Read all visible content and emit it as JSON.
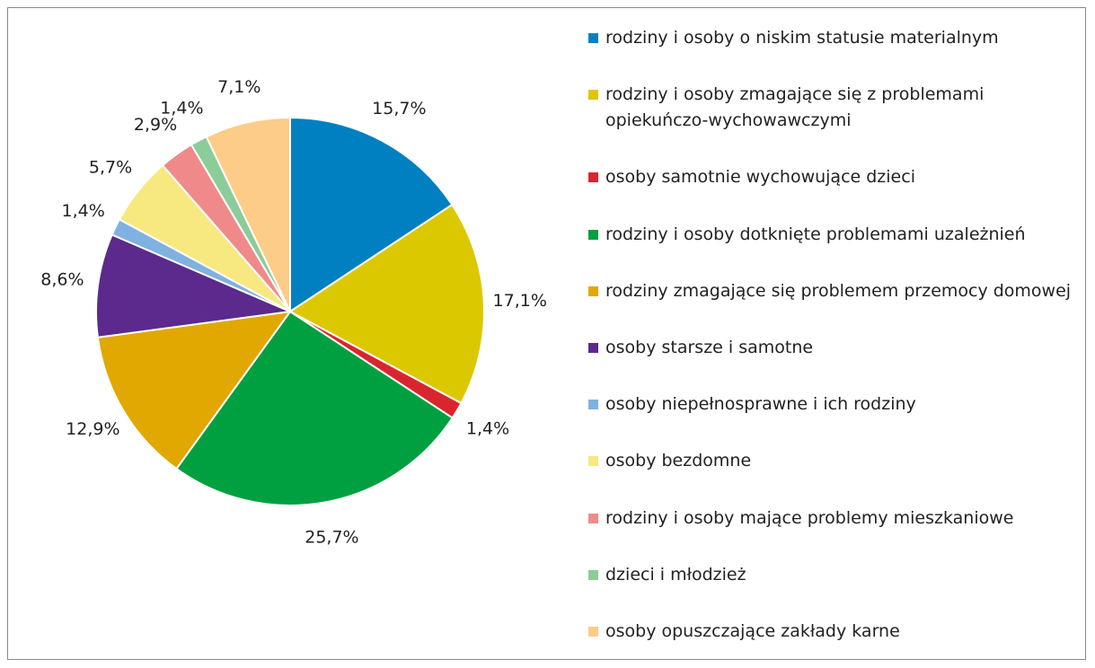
{
  "chart_data": {
    "type": "pie",
    "categories": [
      "rodziny i osoby o niskim statusie materialnym",
      "rodziny i osoby zmagające się z problemami opiekuńczo-wychowawczymi",
      "osoby samotnie wychowujące dzieci",
      "rodziny i osoby dotknięte problemami uzależnień",
      "rodziny zmagające się problemem przemocy domowej",
      "osoby starsze i samotne",
      "osoby niepełnosprawne i ich rodziny",
      "osoby bezdomne",
      "rodziny i osoby mające problemy mieszkaniowe",
      "dzieci i młodzież",
      "osoby opuszczające zakłady karne"
    ],
    "values": [
      15.7,
      17.1,
      1.4,
      25.7,
      12.9,
      8.6,
      1.4,
      5.7,
      2.9,
      1.4,
      7.1
    ],
    "value_labels": [
      "15,7%",
      "17,1%",
      "1,4%",
      "25,7%",
      "12,9%",
      "8,6%",
      "1,4%",
      "5,7%",
      "2,9%",
      "1,4%",
      "7,1%"
    ],
    "colors": [
      "#0080c0",
      "#dcc800",
      "#d9262e",
      "#00a040",
      "#e0a800",
      "#5b2a8c",
      "#7fb2e0",
      "#f8e880",
      "#f08a8a",
      "#8ccc9a",
      "#fccc88"
    ],
    "legend": "right"
  }
}
